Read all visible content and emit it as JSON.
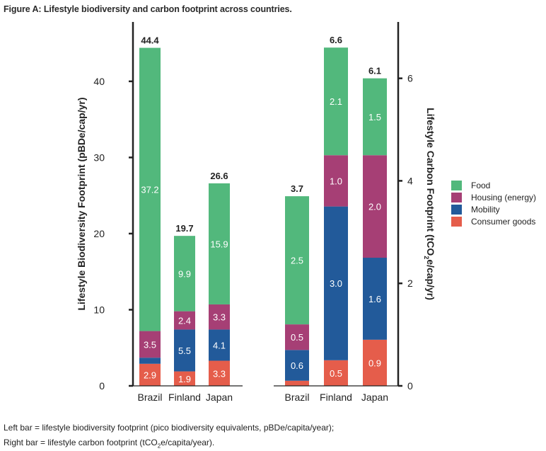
{
  "title": "Figure A:  Lifestyle biodiversity and carbon footprint across countries.",
  "footnotes": {
    "line1": "Left bar = lifestyle biodiversity footprint (pico biodiversity equivalents, pBDe/capita/year);",
    "line2_prefix": "Right bar = lifestyle carbon footprint (tCO",
    "line2_sub": "2",
    "line2_suffix": "e/capita/year)."
  },
  "colors": {
    "Food": "#52b87c",
    "Housing (energy)": "#a63f75",
    "Mobility": "#225a9a",
    "Consumer goods": "#e55d4b"
  },
  "chart_data": [
    {
      "type": "bar",
      "stacked": true,
      "title": "Lifestyle biodiversity footprint",
      "categories": [
        "Brazil",
        "Finland",
        "Japan"
      ],
      "xlabel": "",
      "ylabel": "Lifestyle Biodiversity Footprint (pBDe/cap/yr)",
      "y_axis_side": "left",
      "ylim": [
        0,
        47.8
      ],
      "yticks": [
        0,
        10,
        20,
        30,
        40
      ],
      "grid": false,
      "series": [
        {
          "name": "Consumer goods",
          "values": [
            2.9,
            1.9,
            3.3
          ],
          "labels": [
            "2.9",
            "1.9",
            "3.3"
          ]
        },
        {
          "name": "Mobility",
          "values": [
            0.8,
            5.5,
            4.1
          ],
          "labels": [
            "",
            "5.5",
            "4.1"
          ]
        },
        {
          "name": "Housing (energy)",
          "values": [
            3.5,
            2.4,
            3.3
          ],
          "labels": [
            "3.5",
            "2.4",
            "3.3"
          ]
        },
        {
          "name": "Food",
          "values": [
            37.2,
            9.9,
            15.9
          ],
          "labels": [
            "37.2",
            "9.9",
            "15.9"
          ]
        }
      ],
      "totals": [
        "44.4",
        "19.7",
        "26.6"
      ]
    },
    {
      "type": "bar",
      "stacked": true,
      "title": "Lifestyle carbon footprint",
      "categories": [
        "Brazil",
        "Finland",
        "Japan"
      ],
      "xlabel": "",
      "ylabel": "Lifestyle Carbon Footprint (tCO2e/cap/yr)",
      "ylabel_parts": [
        "Lifestyle Carbon Footprint (tCO",
        "2",
        "e/cap/yr)"
      ],
      "y_axis_side": "right",
      "ylim": [
        0,
        7.1
      ],
      "yticks": [
        0,
        2,
        4,
        6
      ],
      "grid": false,
      "series": [
        {
          "name": "Consumer goods",
          "values": [
            0.1,
            0.5,
            0.9
          ],
          "labels": [
            "",
            "0.5",
            "0.9"
          ]
        },
        {
          "name": "Mobility",
          "values": [
            0.6,
            3.0,
            1.6
          ],
          "labels": [
            "0.6",
            "3.0",
            "1.6"
          ]
        },
        {
          "name": "Housing (energy)",
          "values": [
            0.5,
            1.0,
            2.0
          ],
          "labels": [
            "0.5",
            "1.0",
            "2.0"
          ]
        },
        {
          "name": "Food",
          "values": [
            2.5,
            2.1,
            1.5
          ],
          "labels": [
            "2.5",
            "2.1",
            "1.5"
          ]
        }
      ],
      "totals": [
        "3.7",
        "6.6",
        "6.1"
      ]
    }
  ],
  "legend": {
    "position": "right",
    "entries": [
      "Food",
      "Housing (energy)",
      "Mobility",
      "Consumer goods"
    ]
  }
}
